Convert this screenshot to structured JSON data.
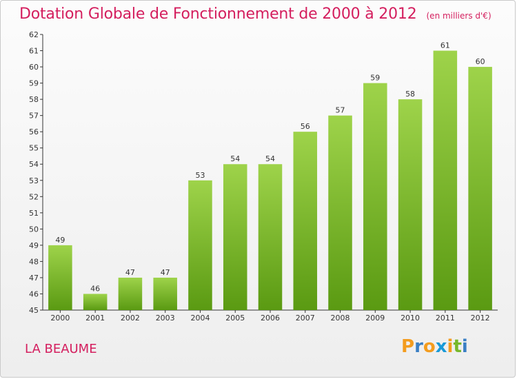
{
  "header": {
    "title": "Dotation Globale de Fonctionnement de 2000 à 2012",
    "unit": "(en milliers d'€)"
  },
  "footer": {
    "city": "LA BEAUME",
    "logo": [
      "P",
      "r",
      "o",
      "x",
      "i",
      "t",
      "i"
    ],
    "logo_colors": [
      "#f39c1e",
      "#3a7fc4",
      "#f39c1e",
      "#1a9ad7",
      "#f39c1e",
      "#77b82a",
      "#3a7fc4"
    ]
  },
  "colors": {
    "bar_top": "#9ed34a",
    "bar_bottom": "#5a9a12",
    "title": "#d41e5e"
  },
  "chart_data": {
    "type": "bar",
    "title": "Dotation Globale de Fonctionnement de 2000 à 2012",
    "xlabel": "",
    "ylabel": "",
    "categories": [
      "2000",
      "2001",
      "2002",
      "2003",
      "2004",
      "2005",
      "2006",
      "2007",
      "2008",
      "2009",
      "2010",
      "2011",
      "2012"
    ],
    "values": [
      49,
      46,
      47,
      47,
      53,
      54,
      54,
      56,
      57,
      59,
      58,
      61,
      60
    ],
    "ylim": [
      45,
      62
    ],
    "yticks": [
      45,
      46,
      47,
      48,
      49,
      50,
      51,
      52,
      53,
      54,
      55,
      56,
      57,
      58,
      59,
      60,
      61,
      62
    ],
    "grid": false,
    "legend": "none"
  }
}
